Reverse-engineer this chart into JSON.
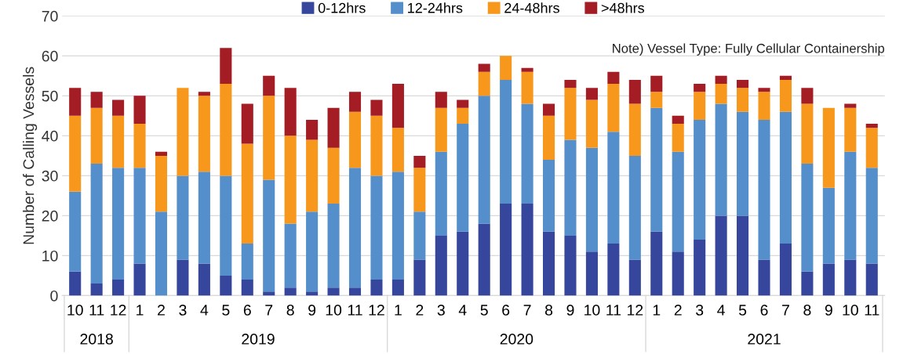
{
  "chart_data": {
    "type": "bar",
    "stacked": true,
    "ylabel": "Number of Calling Vessels",
    "categories": [
      "10",
      "11",
      "12",
      "1",
      "2",
      "3",
      "4",
      "5",
      "6",
      "7",
      "8",
      "9",
      "10",
      "11",
      "12",
      "1",
      "2",
      "3",
      "4",
      "5",
      "6",
      "7",
      "8",
      "9",
      "10",
      "11",
      "12",
      "1",
      "2",
      "3",
      "4",
      "5",
      "6",
      "7",
      "8",
      "9",
      "10",
      "11"
    ],
    "series": [
      {
        "name": "0-12hrs",
        "color": "#35469c",
        "values": [
          6,
          3,
          4,
          8,
          0,
          9,
          8,
          5,
          4,
          1,
          2,
          1,
          2,
          2,
          4,
          4,
          9,
          15,
          16,
          18,
          23,
          23,
          16,
          15,
          11,
          13,
          9,
          16,
          11,
          14,
          20,
          20,
          9,
          13,
          6,
          8,
          9,
          8
        ]
      },
      {
        "name": "12-24hrs",
        "color": "#548fcb",
        "values": [
          20,
          30,
          28,
          24,
          21,
          21,
          23,
          25,
          9,
          28,
          16,
          20,
          21,
          30,
          26,
          27,
          12,
          21,
          27,
          32,
          31,
          25,
          18,
          24,
          26,
          28,
          26,
          31,
          25,
          30,
          28,
          26,
          35,
          33,
          27,
          19,
          27,
          24
        ]
      },
      {
        "name": "24-48hrs",
        "color": "#f7981d",
        "values": [
          19,
          14,
          13,
          11,
          14,
          22,
          19,
          23,
          25,
          21,
          22,
          18,
          14,
          14,
          15,
          11,
          11,
          11,
          4,
          6,
          6,
          8,
          11,
          13,
          12,
          12,
          13,
          4,
          7,
          7,
          5,
          6,
          7,
          8,
          15,
          20,
          11,
          10
        ]
      },
      {
        "name": ">48hrs",
        "color": "#a41c24",
        "values": [
          7,
          4,
          4,
          7,
          1,
          0,
          1,
          9,
          10,
          5,
          12,
          5,
          10,
          5,
          4,
          11,
          3,
          4,
          2,
          2,
          0,
          1,
          3,
          2,
          3,
          3,
          6,
          4,
          2,
          2,
          2,
          2,
          1,
          1,
          4,
          0,
          1,
          1
        ]
      }
    ],
    "ylim": [
      0,
      70
    ],
    "yticks": [
      0,
      10,
      20,
      30,
      40,
      50,
      60,
      70
    ],
    "grid": "y",
    "legend": "top",
    "annotations": [
      "Note) Vessel Type: Fully Cellular Containership",
      "2018",
      "2019",
      "2020",
      "2021"
    ]
  }
}
